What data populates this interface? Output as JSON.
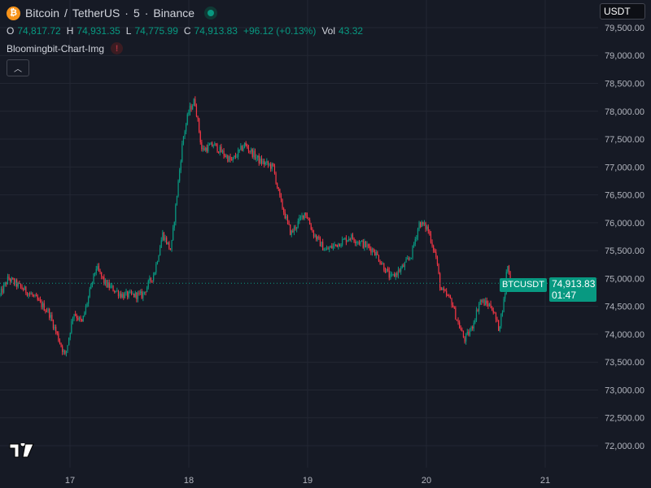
{
  "header": {
    "symbol": "Bitcoin",
    "quote": "TetherUS",
    "interval": "5",
    "exchange": "Binance",
    "title_sep1": "/",
    "title_sep2": "·",
    "coin_icon": "bitcoin-icon",
    "market_status_icon": "live-dot-icon"
  },
  "ohlc": {
    "o_label": "O",
    "o": "74,817.72",
    "h_label": "H",
    "h": "74,931.35",
    "l_label": "L",
    "l": "74,775.99",
    "c_label": "C",
    "c": "74,913.83",
    "change": "+96.12 (+0.13%)",
    "vol_label": "Vol",
    "vol": "43.32"
  },
  "indicator": {
    "name": "Bloomingbit-Chart-Img",
    "warning_icon": "!"
  },
  "collapse_button": "^",
  "currency_button": "USDT",
  "last_price": {
    "symbol": "BTCUSDT",
    "price": "74,913.83",
    "countdown": "01:47"
  },
  "colors": {
    "up": "#089981",
    "down": "#f23645",
    "background": "#161a25",
    "grid": "#232733"
  },
  "chart_data": {
    "type": "candlestick",
    "title": "Bitcoin / TetherUS · 5 · Binance",
    "xlabel": "",
    "ylabel": "",
    "ylim": [
      72000,
      79500
    ],
    "xlim": [
      16.41,
      21.45
    ],
    "grid": true,
    "y_ticks": [
      "79,500.00",
      "79,000.00",
      "78,500.00",
      "78,000.00",
      "77,500.00",
      "77,000.00",
      "76,500.00",
      "76,000.00",
      "75,500.00",
      "75,000.00",
      "74,500.00",
      "74,000.00",
      "73,500.00",
      "73,000.00",
      "72,500.00",
      "72,000.00"
    ],
    "y_tick_values": [
      79500,
      79000,
      78500,
      78000,
      77500,
      77000,
      76500,
      76000,
      75500,
      75000,
      74500,
      74000,
      73500,
      73000,
      72500,
      72000
    ],
    "x_ticks": [
      "17",
      "18",
      "19",
      "20",
      "21"
    ],
    "x_tick_values": [
      17,
      18,
      19,
      20,
      21
    ],
    "last_price": 74913.83,
    "price_path": {
      "day": [
        16.41,
        16.48,
        16.68,
        16.82,
        16.96,
        17.03,
        17.1,
        17.22,
        17.3,
        17.44,
        17.61,
        17.71,
        17.78,
        17.85,
        17.9,
        17.95,
        18.0,
        18.05,
        18.11,
        18.21,
        18.36,
        18.47,
        18.6,
        18.71,
        18.77,
        18.86,
        18.98,
        19.05,
        19.15,
        19.36,
        19.56,
        19.7,
        19.8,
        19.87,
        19.94,
        20.01,
        20.08,
        20.12,
        20.21,
        20.25,
        20.32,
        20.38,
        20.45,
        20.55,
        20.61,
        20.66,
        20.68,
        20.71
      ],
      "close": [
        74700,
        75000,
        74700,
        74400,
        73600,
        74400,
        74200,
        75200,
        74900,
        74700,
        74700,
        75100,
        75800,
        75500,
        76500,
        77500,
        78000,
        78200,
        77300,
        77400,
        77100,
        77400,
        77100,
        77000,
        76400,
        75800,
        76200,
        75800,
        75500,
        75750,
        75500,
        75000,
        75200,
        75400,
        76000,
        75900,
        75400,
        74800,
        74600,
        74300,
        73900,
        74100,
        74600,
        74500,
        74100,
        74700,
        75300,
        74914
      ]
    }
  }
}
